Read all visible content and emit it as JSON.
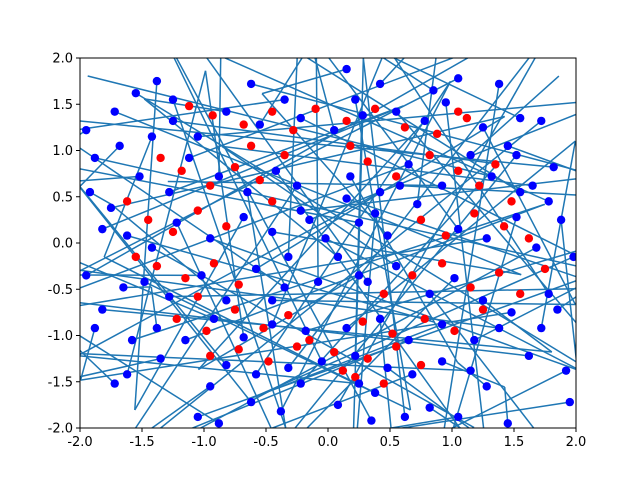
{
  "chart_data": {
    "type": "scatter",
    "title": "",
    "xlabel": "",
    "ylabel": "",
    "xlim": [
      -2.0,
      2.0
    ],
    "ylim": [
      -2.0,
      2.0
    ],
    "grid": false,
    "legend": "none",
    "x_ticks": [
      "-2.0",
      "-1.5",
      "-1.0",
      "-0.5",
      "0.0",
      "0.5",
      "1.0",
      "1.5",
      "2.0"
    ],
    "y_ticks": [
      "-2.0",
      "-1.5",
      "-1.0",
      "-0.5",
      "0.0",
      "0.5",
      "1.0",
      "1.5",
      "2.0"
    ],
    "x_tick_values": [
      -2.0,
      -1.5,
      -1.0,
      -0.5,
      0.0,
      0.5,
      1.0,
      1.5,
      2.0
    ],
    "y_tick_values": [
      -2.0,
      -1.5,
      -1.0,
      -0.5,
      0.0,
      0.5,
      1.0,
      1.5,
      2.0
    ],
    "colors": {
      "line": "#1f77b4",
      "blue_points": "#0000ff",
      "red_points": "#ff0000"
    },
    "series": [
      {
        "marker": "red-circle",
        "color": "#ff0000",
        "points": [
          [
            -1.12,
            1.48
          ],
          [
            -0.93,
            1.38
          ],
          [
            -0.68,
            1.28
          ],
          [
            -0.45,
            1.42
          ],
          [
            -0.28,
            1.22
          ],
          [
            -0.1,
            1.45
          ],
          [
            0.15,
            1.32
          ],
          [
            0.38,
            1.45
          ],
          [
            0.62,
            1.25
          ],
          [
            0.88,
            1.18
          ],
          [
            1.05,
            1.42
          ],
          [
            1.12,
            1.35
          ],
          [
            -1.35,
            0.92
          ],
          [
            -1.18,
            0.78
          ],
          [
            -0.95,
            0.62
          ],
          [
            -0.75,
            0.82
          ],
          [
            -0.55,
            0.68
          ],
          [
            -0.35,
            0.95
          ],
          [
            0.32,
            0.88
          ],
          [
            0.55,
            0.72
          ],
          [
            0.82,
            0.95
          ],
          [
            1.05,
            0.78
          ],
          [
            1.22,
            0.62
          ],
          [
            1.35,
            0.85
          ],
          [
            -1.45,
            0.25
          ],
          [
            -1.25,
            0.12
          ],
          [
            -1.05,
            0.35
          ],
          [
            -0.82,
            0.18
          ],
          [
            0.75,
            0.25
          ],
          [
            0.95,
            0.08
          ],
          [
            1.18,
            0.32
          ],
          [
            1.42,
            0.18
          ],
          [
            1.62,
            0.05
          ],
          [
            -1.38,
            -0.25
          ],
          [
            -1.15,
            -0.38
          ],
          [
            -0.92,
            -0.22
          ],
          [
            -0.72,
            -0.45
          ],
          [
            0.68,
            -0.35
          ],
          [
            0.92,
            -0.22
          ],
          [
            1.15,
            -0.48
          ],
          [
            1.38,
            -0.32
          ],
          [
            1.55,
            -0.55
          ],
          [
            1.75,
            -0.28
          ],
          [
            -1.22,
            -0.82
          ],
          [
            -0.98,
            -0.95
          ],
          [
            -0.75,
            -0.72
          ],
          [
            -0.52,
            -0.92
          ],
          [
            -0.32,
            -0.78
          ],
          [
            0.28,
            -0.85
          ],
          [
            0.52,
            -0.98
          ],
          [
            0.78,
            -0.82
          ],
          [
            1.02,
            -0.95
          ],
          [
            1.25,
            -0.72
          ],
          [
            -0.95,
            -1.22
          ],
          [
            -0.72,
            -1.15
          ],
          [
            -0.48,
            -1.28
          ],
          [
            -0.25,
            -1.12
          ],
          [
            0.05,
            -1.18
          ],
          [
            0.32,
            -1.25
          ],
          [
            0.55,
            -1.12
          ],
          [
            0.75,
            -1.32
          ],
          [
            0.45,
            -1.52
          ],
          [
            0.22,
            -1.45
          ],
          [
            -1.55,
            -0.15
          ],
          [
            -1.62,
            0.45
          ],
          [
            -0.45,
            0.45
          ],
          [
            0.45,
            -0.55
          ],
          [
            -0.15,
            -1.05
          ],
          [
            0.18,
            1.05
          ],
          [
            1.48,
            0.45
          ],
          [
            -1.05,
            -0.58
          ],
          [
            0.12,
            -1.38
          ],
          [
            -0.62,
            1.05
          ]
        ]
      },
      {
        "marker": "blue-circle",
        "color": "#0000ff",
        "points": [
          [
            -1.55,
            1.62
          ],
          [
            -1.38,
            1.75
          ],
          [
            -1.72,
            1.42
          ],
          [
            -0.62,
            1.72
          ],
          [
            -0.35,
            1.55
          ],
          [
            0.15,
            1.88
          ],
          [
            0.42,
            1.72
          ],
          [
            0.85,
            1.65
          ],
          [
            1.05,
            1.78
          ],
          [
            1.38,
            1.72
          ],
          [
            1.72,
            1.32
          ],
          [
            0.22,
            1.55
          ],
          [
            -1.88,
            0.92
          ],
          [
            -1.68,
            1.05
          ],
          [
            -1.92,
            0.55
          ],
          [
            -1.75,
            0.38
          ],
          [
            1.82,
            0.82
          ],
          [
            1.78,
            0.45
          ],
          [
            1.65,
            0.62
          ],
          [
            1.88,
            0.25
          ],
          [
            1.52,
            0.95
          ],
          [
            -1.82,
            -0.72
          ],
          [
            -1.88,
            -0.92
          ],
          [
            -1.65,
            -0.48
          ],
          [
            -1.58,
            -1.05
          ],
          [
            -1.72,
            -1.52
          ],
          [
            -1.62,
            -1.42
          ],
          [
            1.78,
            -0.55
          ],
          [
            1.85,
            -0.72
          ],
          [
            1.72,
            -0.92
          ],
          [
            1.92,
            -1.38
          ],
          [
            1.95,
            -1.72
          ],
          [
            1.98,
            -0.15
          ],
          [
            -1.05,
            -1.88
          ],
          [
            -0.88,
            -1.95
          ],
          [
            -0.62,
            -1.72
          ],
          [
            -0.38,
            -1.82
          ],
          [
            0.08,
            -1.75
          ],
          [
            0.35,
            -1.92
          ],
          [
            0.62,
            -1.88
          ],
          [
            0.82,
            -1.78
          ],
          [
            1.05,
            -1.88
          ],
          [
            1.45,
            -1.95
          ],
          [
            0.25,
            -1.52
          ],
          [
            -1.42,
            1.15
          ],
          [
            -1.25,
            1.32
          ],
          [
            -1.05,
            1.15
          ],
          [
            -0.82,
            1.42
          ],
          [
            -0.55,
            1.28
          ],
          [
            -0.22,
            1.35
          ],
          [
            0.05,
            1.22
          ],
          [
            0.28,
            1.38
          ],
          [
            0.55,
            1.42
          ],
          [
            0.78,
            1.32
          ],
          [
            1.25,
            1.25
          ],
          [
            1.45,
            1.05
          ],
          [
            -1.52,
            0.72
          ],
          [
            -1.28,
            0.55
          ],
          [
            -1.12,
            0.92
          ],
          [
            -0.88,
            0.72
          ],
          [
            -0.65,
            0.55
          ],
          [
            -0.42,
            0.78
          ],
          [
            -0.25,
            0.62
          ],
          [
            0.18,
            0.72
          ],
          [
            0.42,
            0.55
          ],
          [
            0.65,
            0.85
          ],
          [
            0.92,
            0.62
          ],
          [
            1.15,
            0.95
          ],
          [
            1.32,
            0.72
          ],
          [
            1.55,
            0.55
          ],
          [
            -1.62,
            0.08
          ],
          [
            -1.42,
            -0.05
          ],
          [
            -1.22,
            0.22
          ],
          [
            -0.95,
            0.05
          ],
          [
            -0.68,
            0.28
          ],
          [
            -0.45,
            0.12
          ],
          [
            -0.22,
            0.35
          ],
          [
            0.25,
            0.22
          ],
          [
            0.48,
            0.08
          ],
          [
            0.72,
            0.42
          ],
          [
            1.05,
            0.15
          ],
          [
            1.28,
            0.05
          ],
          [
            1.52,
            0.28
          ],
          [
            1.68,
            -0.05
          ],
          [
            -1.48,
            -0.42
          ],
          [
            -1.28,
            -0.58
          ],
          [
            -1.02,
            -0.35
          ],
          [
            -0.82,
            -0.62
          ],
          [
            -0.58,
            -0.28
          ],
          [
            -0.35,
            -0.48
          ],
          [
            0.32,
            -0.42
          ],
          [
            0.55,
            -0.25
          ],
          [
            0.82,
            -0.55
          ],
          [
            1.02,
            -0.38
          ],
          [
            1.25,
            -0.62
          ],
          [
            1.48,
            -0.75
          ],
          [
            -1.38,
            -0.92
          ],
          [
            -1.15,
            -1.05
          ],
          [
            -0.92,
            -0.82
          ],
          [
            -0.68,
            -1.02
          ],
          [
            -0.45,
            -0.88
          ],
          [
            -0.18,
            -0.95
          ],
          [
            0.15,
            -0.92
          ],
          [
            0.42,
            -0.82
          ],
          [
            0.65,
            -1.05
          ],
          [
            0.92,
            -0.88
          ],
          [
            1.18,
            -1.05
          ],
          [
            1.38,
            -0.92
          ],
          [
            -0.82,
            -1.32
          ],
          [
            -0.58,
            -1.42
          ],
          [
            -0.32,
            -1.35
          ],
          [
            -0.05,
            -1.28
          ],
          [
            0.22,
            -1.22
          ],
          [
            0.48,
            -1.35
          ],
          [
            0.68,
            -1.42
          ],
          [
            0.92,
            -1.28
          ],
          [
            1.15,
            -1.38
          ],
          [
            0.38,
            -1.62
          ],
          [
            -0.22,
            -1.52
          ],
          [
            -0.15,
            0.25
          ],
          [
            0.08,
            -0.15
          ],
          [
            -0.08,
            -0.42
          ],
          [
            0.15,
            0.48
          ],
          [
            -0.32,
            -0.15
          ],
          [
            0.38,
            0.32
          ],
          [
            -0.02,
            0.05
          ],
          [
            0.25,
            -0.35
          ],
          [
            -0.45,
            -0.62
          ],
          [
            0.58,
            0.62
          ],
          [
            -1.95,
            1.22
          ],
          [
            -1.82,
            0.15
          ],
          [
            -1.95,
            -0.35
          ],
          [
            1.55,
            1.35
          ],
          [
            -1.25,
            1.55
          ],
          [
            0.95,
            1.52
          ],
          [
            -0.95,
            -1.55
          ],
          [
            1.28,
            -1.55
          ],
          [
            -1.35,
            -1.25
          ],
          [
            1.62,
            -1.22
          ]
        ]
      }
    ]
  }
}
